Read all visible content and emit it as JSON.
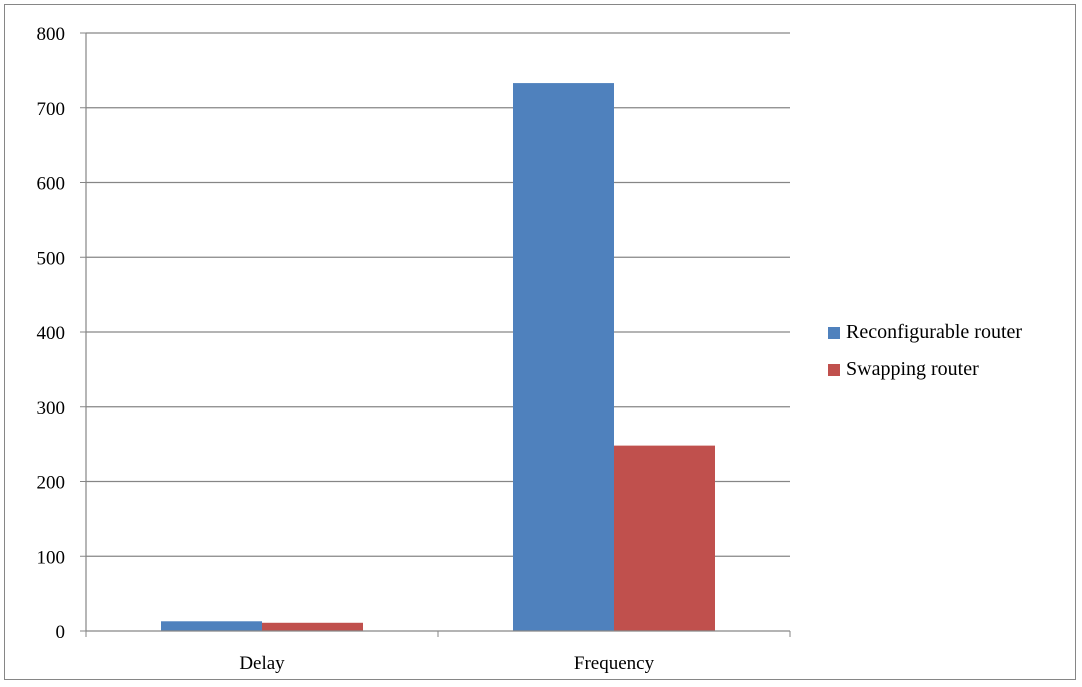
{
  "chart_data": {
    "type": "bar",
    "categories": [
      "Delay",
      "Frequency"
    ],
    "series": [
      {
        "name": "Reconfigurable router",
        "color": "#4F81BD",
        "values": [
          13,
          733
        ]
      },
      {
        "name": "Swapping router",
        "color": "#C0504D",
        "values": [
          11,
          248
        ]
      }
    ],
    "ylim": [
      0,
      800
    ],
    "yticks": [
      "0",
      "100",
      "200",
      "300",
      "400",
      "500",
      "600",
      "700",
      "800"
    ],
    "grid": true,
    "legend_position": "right"
  }
}
